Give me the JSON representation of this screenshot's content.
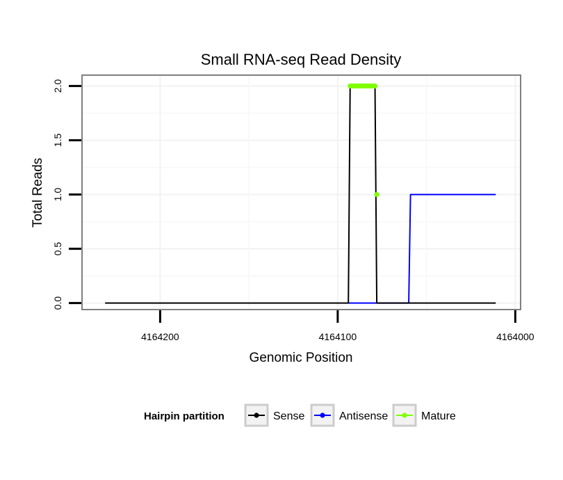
{
  "chart_data": {
    "type": "line",
    "title": "Small RNA-seq Read Density",
    "xlabel": "Genomic Position",
    "ylabel": "Total Reads",
    "x_reversed": true,
    "xlim": [
      4164244,
      4163997
    ],
    "ylim": [
      -0.06,
      2.1
    ],
    "x_ticks": [
      4164200,
      4164100,
      4164000
    ],
    "x_tick_labels": [
      "4164200",
      "4164100",
      "4164000"
    ],
    "y_ticks": [
      0,
      0.5,
      1,
      1.5,
      2
    ],
    "y_tick_labels": [
      "0.0",
      "0.5",
      "1.0",
      "1.5",
      "2.0"
    ],
    "grid": true,
    "legend": {
      "title": "Hairpin partition",
      "placement": "bottom"
    },
    "series": [
      {
        "name": "Sense",
        "color": "#000000",
        "x": [
          4164231,
          4164094,
          4164093,
          4164079,
          4164078,
          4164011
        ],
        "y": [
          0,
          0,
          2,
          2,
          0,
          0
        ]
      },
      {
        "name": "Antisense",
        "color": "#0000ff",
        "x": [
          4164094,
          4164078,
          4164077,
          4164060,
          4164059,
          4164011
        ],
        "y": [
          0,
          0,
          0,
          0,
          1,
          1
        ]
      },
      {
        "name": "Mature",
        "color": "#7fff00",
        "x": [
          4164093,
          4164092,
          4164091,
          4164090,
          4164089,
          4164088,
          4164087,
          4164086,
          4164085,
          4164084,
          4164083,
          4164082,
          4164081,
          4164080,
          4164079,
          4164078
        ],
        "y": [
          2,
          2,
          2,
          2,
          2,
          2,
          2,
          2,
          2,
          2,
          2,
          2,
          2,
          2,
          2,
          1
        ]
      }
    ]
  }
}
